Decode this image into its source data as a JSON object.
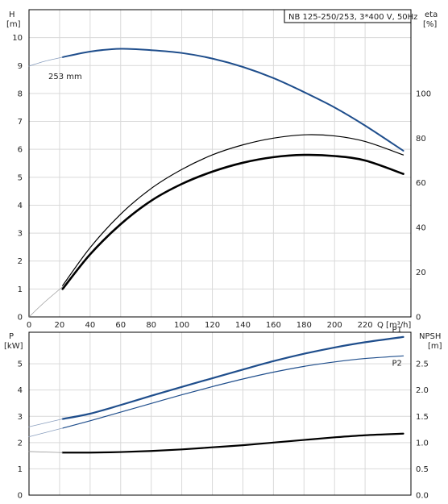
{
  "chart_data": [
    {
      "type": "line",
      "legend_box": "NB 125-250/253, 3*400 V, 50Hz",
      "ylabel_left": "H",
      "ylabel_left_unit": "[m]",
      "ylabel_right": "eta",
      "ylabel_right_unit": "[%]",
      "xlabel": "Q [m³/h]",
      "xlim": [
        0,
        250
      ],
      "ylim_left": [
        0,
        11
      ],
      "ylim_right": [
        0,
        137.5
      ],
      "x_ticks": [
        0,
        20,
        40,
        60,
        80,
        100,
        120,
        140,
        160,
        180,
        200,
        220
      ],
      "y_ticks_left": [
        0,
        1,
        2,
        3,
        4,
        5,
        6,
        7,
        8,
        9,
        10
      ],
      "y_ticks_right": [
        0,
        20,
        40,
        60,
        80,
        100
      ],
      "grid": true,
      "annotation": "253 mm",
      "series": [
        {
          "name": "H",
          "axis": "left",
          "color": "#1f4e8c",
          "width": 2,
          "x": [
            22,
            40,
            60,
            80,
            100,
            120,
            140,
            160,
            180,
            200,
            220,
            245
          ],
          "y": [
            9.3,
            9.5,
            9.6,
            9.55,
            9.45,
            9.25,
            8.95,
            8.55,
            8.05,
            7.5,
            6.85,
            5.95
          ]
        },
        {
          "name": "H-ext",
          "axis": "left",
          "color": "#8a9fbf",
          "width": 0.8,
          "x": [
            0,
            10,
            22
          ],
          "y": [
            8.98,
            9.15,
            9.3
          ]
        },
        {
          "name": "eta-upper",
          "axis": "right",
          "color": "#000000",
          "width": 1.2,
          "x": [
            22,
            40,
            60,
            80,
            100,
            120,
            140,
            160,
            180,
            200,
            220,
            245
          ],
          "y": [
            14,
            31,
            46,
            57.5,
            66,
            72.5,
            77,
            80,
            81.5,
            81,
            78.5,
            72.5
          ]
        },
        {
          "name": "eta-lower",
          "axis": "right",
          "color": "#000000",
          "width": 2.6,
          "x": [
            22,
            40,
            60,
            80,
            100,
            120,
            140,
            160,
            180,
            200,
            220,
            245
          ],
          "y": [
            12.5,
            28,
            41.5,
            52,
            59.5,
            65,
            69,
            71.5,
            72.5,
            72,
            70,
            64
          ]
        },
        {
          "name": "eta-ext",
          "axis": "right",
          "color": "#999999",
          "width": 0.7,
          "x": [
            0,
            10,
            22
          ],
          "y": [
            0,
            6.5,
            13.5
          ]
        }
      ]
    },
    {
      "type": "line",
      "ylabel_left": "P",
      "ylabel_left_unit": "[kW]",
      "ylabel_right": "NPSH",
      "ylabel_right_unit": "[m]",
      "xlim": [
        0,
        250
      ],
      "ylim_left": [
        0,
        6.2
      ],
      "ylim_right": [
        0,
        3.1
      ],
      "y_ticks_left": [
        0,
        1,
        2,
        3,
        4,
        5
      ],
      "y_ticks_right": [
        0.0,
        0.5,
        1.0,
        1.5,
        2.0,
        2.5
      ],
      "grid": true,
      "series": [
        {
          "name": "P1",
          "axis": "left",
          "color": "#1f4e8c",
          "width": 2.2,
          "x": [
            22,
            40,
            60,
            80,
            100,
            120,
            140,
            160,
            180,
            200,
            220,
            245
          ],
          "y": [
            2.9,
            3.1,
            3.43,
            3.78,
            4.12,
            4.45,
            4.78,
            5.1,
            5.38,
            5.62,
            5.82,
            6.02
          ]
        },
        {
          "name": "P2",
          "axis": "left",
          "color": "#1f4e8c",
          "width": 1.2,
          "x": [
            22,
            40,
            60,
            80,
            100,
            120,
            140,
            160,
            180,
            200,
            220,
            245
          ],
          "y": [
            2.55,
            2.83,
            3.16,
            3.49,
            3.82,
            4.13,
            4.42,
            4.68,
            4.9,
            5.07,
            5.2,
            5.3
          ]
        },
        {
          "name": "P1-ext",
          "axis": "left",
          "color": "#8a9fbf",
          "width": 0.8,
          "x": [
            0,
            22
          ],
          "y": [
            2.6,
            2.9
          ]
        },
        {
          "name": "P2-ext",
          "axis": "left",
          "color": "#8a9fbf",
          "width": 0.8,
          "x": [
            0,
            22
          ],
          "y": [
            2.22,
            2.55
          ]
        },
        {
          "name": "NPSH",
          "axis": "right",
          "color": "#000000",
          "width": 2.2,
          "x": [
            22,
            40,
            60,
            80,
            100,
            120,
            140,
            160,
            180,
            200,
            220,
            245
          ],
          "y": [
            0.81,
            0.81,
            0.82,
            0.84,
            0.87,
            0.91,
            0.95,
            1.0,
            1.05,
            1.1,
            1.14,
            1.17
          ]
        },
        {
          "name": "NPSH-ext",
          "axis": "right",
          "color": "#999999",
          "width": 0.8,
          "x": [
            0,
            22
          ],
          "y": [
            0.83,
            0.81
          ]
        }
      ],
      "line_labels": [
        {
          "text": "P1",
          "series": "P1"
        },
        {
          "text": "P2",
          "series": "P2"
        }
      ]
    }
  ]
}
